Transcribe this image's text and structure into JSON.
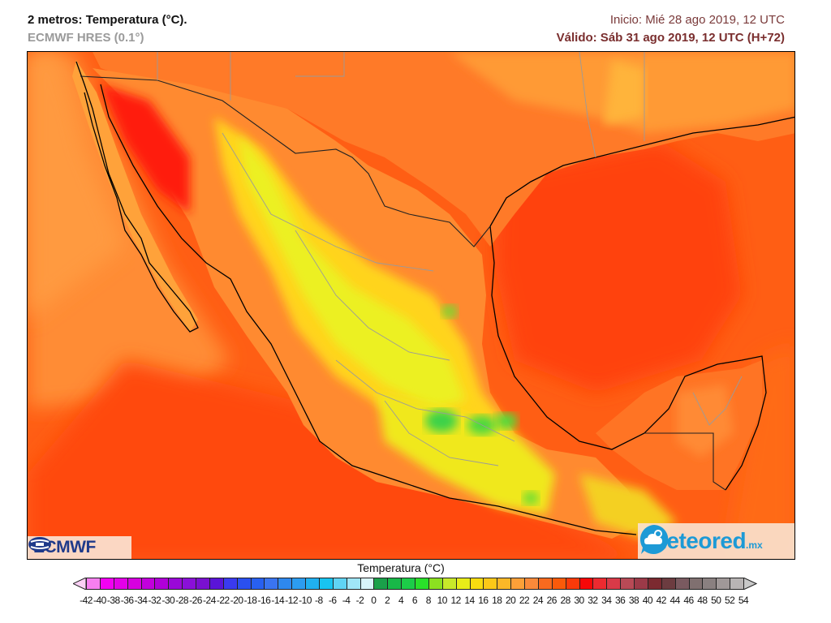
{
  "header": {
    "title": "2 metros: Temperatura (°C).",
    "model": "ECMWF HRES (0.1°)",
    "init": "Inicio: Mié 28 ago 2019, 12 UTC",
    "valid": "Válido: Sáb 31 ago 2019, 12 UTC (H+72)"
  },
  "map": {
    "region": "Mexico, Gulf of Mexico, southern USA, Central America",
    "variable": "2 m temperature",
    "colors": {
      "sea_hot": "#ff4a0a",
      "sea_warm": "#ff6614",
      "sea_mild": "#ff8a30",
      "land_hot": "#ff1a10",
      "plateau": "#ffd21e",
      "highland": "#e8f020",
      "cool_peaks": "#3ad24a",
      "coastline": "#000000",
      "borders": "#9a9a9a"
    }
  },
  "logos": {
    "ecmwf": "ECMWF",
    "meteored": "meteored",
    "meteored_tld": ".mx"
  },
  "colorbar": {
    "title": "Temperatura (°C)",
    "labels": [
      "-42",
      "-40",
      "-38",
      "-36",
      "-34",
      "-32",
      "-30",
      "-28",
      "-26",
      "-24",
      "-22",
      "-20",
      "-18",
      "-16",
      "-14",
      "-12",
      "-10",
      "-8",
      "-6",
      "-4",
      "-2",
      "0",
      "2",
      "4",
      "6",
      "8",
      "10",
      "12",
      "14",
      "16",
      "18",
      "20",
      "22",
      "24",
      "26",
      "28",
      "30",
      "32",
      "34",
      "36",
      "38",
      "40",
      "42",
      "44",
      "46",
      "48",
      "50",
      "52",
      "54"
    ],
    "colors": [
      "#fbd0f5",
      "#f77ff0",
      "#f200f2",
      "#e400e8",
      "#d600e0",
      "#c200dc",
      "#b000d8",
      "#9a08d8",
      "#8a10d8",
      "#7a10d0",
      "#5a14d8",
      "#3a3af0",
      "#2a50f0",
      "#2860f0",
      "#3a74f0",
      "#2e88ee",
      "#2c9cf0",
      "#20b0f0",
      "#18c4f0",
      "#60d4f4",
      "#a0e6f8",
      "#d8f4fa",
      "#1aa04a",
      "#18b848",
      "#1ccc48",
      "#2ae02a",
      "#8ce020",
      "#c8e82a",
      "#e8ec18",
      "#f8dc10",
      "#fcc818",
      "#fcb828",
      "#fca038",
      "#fb8a3a",
      "#f86a1e",
      "#fa5a0a",
      "#fb3a0a",
      "#f80808",
      "#ec2a30",
      "#d83a48",
      "#b84a56",
      "#9c3a48",
      "#7c2a30",
      "#6c3c40",
      "#7a5a60",
      "#807070",
      "#8a8080",
      "#a09898",
      "#b8b4b4"
    ]
  }
}
